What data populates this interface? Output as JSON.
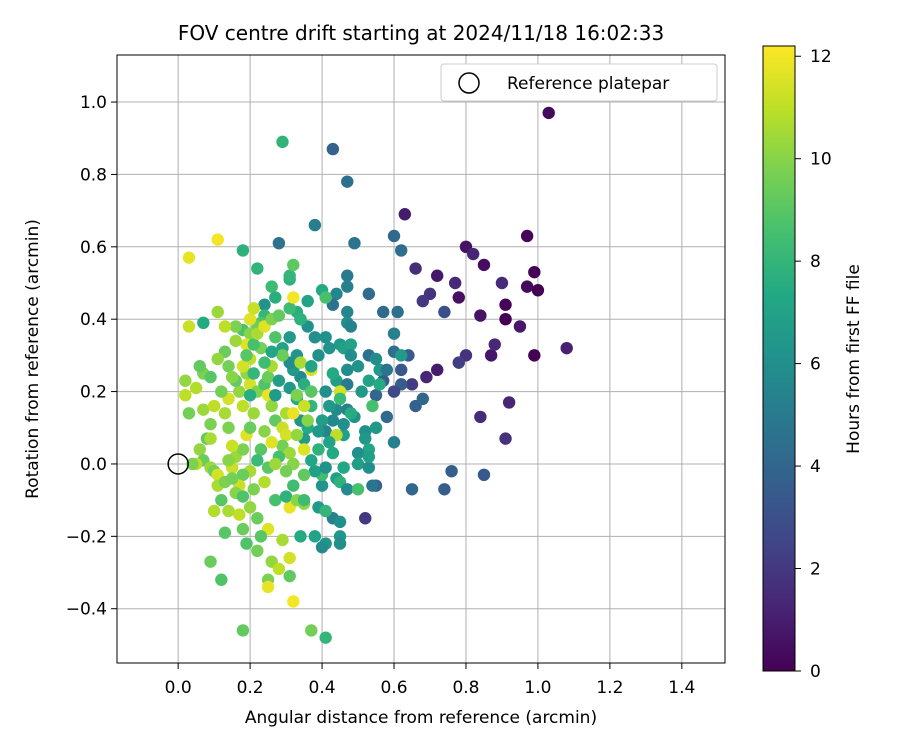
{
  "chart_data": {
    "type": "scatter",
    "title": "FOV centre drift starting at 2024/11/18 16:02:33",
    "xlabel": "Angular distance from reference (arcmin)",
    "ylabel": "Rotation from reference (arcmin)",
    "xlim": [
      -0.17,
      1.52
    ],
    "ylim": [
      -0.55,
      1.13
    ],
    "xticks": [
      "0.0",
      "0.2",
      "0.4",
      "0.6",
      "0.8",
      "1.0",
      "1.2",
      "1.4"
    ],
    "xtick_values": [
      0.0,
      0.2,
      0.4,
      0.6,
      0.8,
      1.0,
      1.2,
      1.4
    ],
    "yticks": [
      "−0.4",
      "−0.2",
      "0.0",
      "0.2",
      "0.4",
      "0.6",
      "0.8",
      "1.0"
    ],
    "ytick_values": [
      -0.4,
      -0.2,
      0.0,
      0.2,
      0.4,
      0.6,
      0.8,
      1.0
    ],
    "grid": true,
    "legend": {
      "position": "top-right",
      "entries": [
        "Reference platepar"
      ]
    },
    "reference_point": {
      "x": 0.0,
      "y": 0.0,
      "label": "Reference platepar"
    },
    "colorbar": {
      "label": "Hours from first FF file",
      "range": [
        0,
        12.2
      ],
      "ticks": [
        "0",
        "2",
        "4",
        "6",
        "8",
        "10",
        "12"
      ],
      "tick_values": [
        0,
        2,
        4,
        6,
        8,
        10,
        12
      ],
      "colormap": "viridis"
    },
    "points": [
      [
        1.03,
        0.97,
        0.3
      ],
      [
        0.97,
        0.63,
        0.2
      ],
      [
        0.99,
        0.53,
        0.1
      ],
      [
        1.0,
        0.48,
        0.0
      ],
      [
        0.97,
        0.49,
        0.3
      ],
      [
        0.91,
        0.44,
        0.1
      ],
      [
        0.91,
        0.4,
        0.0
      ],
      [
        0.95,
        0.38,
        0.8
      ],
      [
        0.99,
        0.3,
        0.0
      ],
      [
        1.08,
        0.32,
        1.1
      ],
      [
        0.85,
        0.55,
        0.4
      ],
      [
        0.8,
        0.6,
        0.6
      ],
      [
        0.82,
        0.58,
        1.3
      ],
      [
        0.9,
        0.5,
        1.5
      ],
      [
        0.84,
        0.41,
        0.6
      ],
      [
        0.78,
        0.46,
        0.5
      ],
      [
        0.77,
        0.5,
        1.4
      ],
      [
        0.72,
        0.52,
        0.8
      ],
      [
        0.63,
        0.69,
        0.9
      ],
      [
        0.66,
        0.54,
        1.6
      ],
      [
        0.7,
        0.47,
        1.8
      ],
      [
        0.68,
        0.45,
        2.0
      ],
      [
        0.74,
        0.42,
        3.0
      ],
      [
        0.87,
        0.3,
        0.7
      ],
      [
        0.88,
        0.33,
        1.4
      ],
      [
        0.8,
        0.3,
        1.8
      ],
      [
        0.78,
        0.28,
        2.2
      ],
      [
        0.72,
        0.26,
        0.9
      ],
      [
        0.69,
        0.24,
        1.3
      ],
      [
        0.65,
        0.22,
        2.1
      ],
      [
        0.92,
        0.17,
        1.3
      ],
      [
        0.91,
        0.07,
        1.8
      ],
      [
        0.84,
        0.13,
        1.5
      ],
      [
        0.85,
        -0.03,
        3.4
      ],
      [
        0.76,
        -0.02,
        3.6
      ],
      [
        0.74,
        -0.07,
        3.6
      ],
      [
        0.65,
        -0.07,
        4.1
      ],
      [
        0.52,
        -0.15,
        2.0
      ],
      [
        0.55,
        -0.06,
        3.8
      ],
      [
        0.66,
        0.16,
        3.8
      ],
      [
        0.68,
        0.18,
        4.0
      ],
      [
        0.62,
        0.22,
        3.6
      ],
      [
        0.6,
        0.2,
        2.6
      ],
      [
        0.55,
        0.19,
        4.0
      ],
      [
        0.57,
        0.23,
        3.5
      ],
      [
        0.58,
        0.13,
        4.2
      ],
      [
        0.6,
        0.06,
        5.3
      ],
      [
        0.62,
        0.26,
        3.3
      ],
      [
        0.64,
        0.3,
        3.5
      ],
      [
        0.6,
        0.31,
        4.4
      ],
      [
        0.6,
        0.36,
        5.2
      ],
      [
        0.57,
        0.42,
        4.2
      ],
      [
        0.53,
        0.47,
        4.3
      ],
      [
        0.61,
        0.42,
        4.5
      ],
      [
        0.62,
        0.59,
        4.4
      ],
      [
        0.6,
        0.63,
        4.1
      ],
      [
        0.49,
        0.61,
        4.7
      ],
      [
        0.43,
        0.87,
        3.8
      ],
      [
        0.47,
        0.78,
        4.5
      ],
      [
        0.38,
        0.66,
        5.1
      ],
      [
        0.28,
        0.61,
        4.6
      ],
      [
        0.47,
        0.52,
        5.0
      ],
      [
        0.47,
        0.49,
        5.3
      ],
      [
        0.44,
        0.47,
        5.5
      ],
      [
        0.43,
        0.44,
        4.6
      ],
      [
        0.47,
        0.42,
        5.6
      ],
      [
        0.47,
        0.39,
        5.9
      ],
      [
        0.48,
        0.38,
        5.4
      ],
      [
        0.38,
        0.35,
        6.0
      ],
      [
        0.41,
        0.35,
        6.1
      ],
      [
        0.42,
        0.32,
        6.3
      ],
      [
        0.45,
        0.33,
        6.5
      ],
      [
        0.46,
        0.32,
        6.8
      ],
      [
        0.48,
        0.33,
        7.0
      ],
      [
        0.48,
        0.3,
        5.9
      ],
      [
        0.53,
        0.3,
        4.5
      ],
      [
        0.56,
        0.26,
        6.6
      ],
      [
        0.47,
        0.26,
        5.9
      ],
      [
        0.44,
        0.23,
        6.8
      ],
      [
        0.47,
        0.22,
        5.0
      ],
      [
        0.51,
        0.2,
        6.5
      ],
      [
        0.53,
        0.23,
        7.0
      ],
      [
        0.41,
        0.2,
        6.0
      ],
      [
        0.44,
        0.15,
        5.8
      ],
      [
        0.47,
        0.15,
        5.2
      ],
      [
        0.49,
        0.13,
        6.2
      ],
      [
        0.43,
        0.12,
        5.7
      ],
      [
        0.4,
        0.12,
        6.8
      ],
      [
        0.36,
        0.1,
        7.4
      ],
      [
        0.41,
        0.09,
        5.5
      ],
      [
        0.46,
        0.08,
        6.9
      ],
      [
        0.52,
        0.09,
        6.1
      ],
      [
        0.55,
        0.1,
        6.5
      ],
      [
        0.52,
        0.07,
        6.4
      ],
      [
        0.53,
        0.04,
        7.2
      ],
      [
        0.5,
        0.03,
        6.0
      ],
      [
        0.5,
        0.0,
        6.8
      ],
      [
        0.46,
        -0.01,
        7.3
      ],
      [
        0.44,
        -0.04,
        6.9
      ],
      [
        0.45,
        -0.05,
        7.8
      ],
      [
        0.53,
        -0.01,
        6.0
      ],
      [
        0.53,
        0.02,
        6.9
      ],
      [
        0.47,
        -0.07,
        5.8
      ],
      [
        0.5,
        -0.07,
        8.6
      ],
      [
        0.54,
        -0.06,
        4.8
      ],
      [
        0.43,
        -0.15,
        5.2
      ],
      [
        0.45,
        -0.16,
        6.0
      ],
      [
        0.45,
        -0.2,
        6.4
      ],
      [
        0.45,
        -0.22,
        6.0
      ],
      [
        0.41,
        -0.22,
        6.4
      ],
      [
        0.4,
        -0.23,
        5.8
      ],
      [
        0.38,
        -0.2,
        7.0
      ],
      [
        0.34,
        -0.2,
        7.4
      ],
      [
        0.39,
        -0.12,
        6.6
      ],
      [
        0.41,
        -0.13,
        8.0
      ],
      [
        0.4,
        -0.06,
        6.3
      ],
      [
        0.4,
        -0.03,
        8.4
      ],
      [
        0.38,
        -0.02,
        6.9
      ],
      [
        0.37,
        0.01,
        7.2
      ],
      [
        0.39,
        0.04,
        7.8
      ],
      [
        0.35,
        0.07,
        6.7
      ],
      [
        0.34,
        0.12,
        6.2
      ],
      [
        0.37,
        0.16,
        8.0
      ],
      [
        0.33,
        0.18,
        7.4
      ],
      [
        0.31,
        0.21,
        6.5
      ],
      [
        0.34,
        0.24,
        5.8
      ],
      [
        0.35,
        0.22,
        7.6
      ],
      [
        0.32,
        0.26,
        6.5
      ],
      [
        0.31,
        0.28,
        5.9
      ],
      [
        0.33,
        0.3,
        6.3
      ],
      [
        0.29,
        0.32,
        7.0
      ],
      [
        0.31,
        0.35,
        6.6
      ],
      [
        0.36,
        0.38,
        6.1
      ],
      [
        0.34,
        0.4,
        6.6
      ],
      [
        0.33,
        0.42,
        7.6
      ],
      [
        0.31,
        0.43,
        8.4
      ],
      [
        0.27,
        0.46,
        7.6
      ],
      [
        0.26,
        0.49,
        8.3
      ],
      [
        0.31,
        0.51,
        7.7
      ],
      [
        0.31,
        0.52,
        8.0
      ],
      [
        0.32,
        0.55,
        9.1
      ],
      [
        0.22,
        0.54,
        7.9
      ],
      [
        0.18,
        0.59,
        7.7
      ],
      [
        0.29,
        0.89,
        7.9
      ],
      [
        0.4,
        0.48,
        7.4
      ],
      [
        0.41,
        0.46,
        8.6
      ],
      [
        0.36,
        0.45,
        7.0
      ],
      [
        0.34,
        0.4,
        7.8
      ],
      [
        0.24,
        0.44,
        6.2
      ],
      [
        0.24,
        0.41,
        8.0
      ],
      [
        0.23,
        0.39,
        8.8
      ],
      [
        0.22,
        0.38,
        9.4
      ],
      [
        0.18,
        0.37,
        8.7
      ],
      [
        0.16,
        0.38,
        9.8
      ],
      [
        0.13,
        0.38,
        11.0
      ],
      [
        0.11,
        0.42,
        10.4
      ],
      [
        0.07,
        0.39,
        7.4
      ],
      [
        0.03,
        0.38,
        11.2
      ],
      [
        0.03,
        0.57,
        11.8
      ],
      [
        0.11,
        0.62,
        12.0
      ],
      [
        0.2,
        0.4,
        11.6
      ],
      [
        0.21,
        0.43,
        11.2
      ],
      [
        0.2,
        0.36,
        10.0
      ],
      [
        0.19,
        0.33,
        11.6
      ],
      [
        0.16,
        0.34,
        10.4
      ],
      [
        0.13,
        0.31,
        9.4
      ],
      [
        0.11,
        0.29,
        10.2
      ],
      [
        0.14,
        0.27,
        9.6
      ],
      [
        0.07,
        0.25,
        9.8
      ],
      [
        0.09,
        0.24,
        9.0
      ],
      [
        0.06,
        0.27,
        9.2
      ],
      [
        0.05,
        0.21,
        10.8
      ],
      [
        0.02,
        0.23,
        10.2
      ],
      [
        0.02,
        0.19,
        11.0
      ],
      [
        0.03,
        0.14,
        9.6
      ],
      [
        0.07,
        0.15,
        10.4
      ],
      [
        0.09,
        0.11,
        9.8
      ],
      [
        0.08,
        0.07,
        9.2
      ],
      [
        0.06,
        0.04,
        10.2
      ],
      [
        0.07,
        0.01,
        9.4
      ],
      [
        0.05,
        0.0,
        11.0
      ],
      [
        0.09,
        -0.01,
        10.4
      ],
      [
        0.1,
        -0.02,
        9.6
      ],
      [
        0.11,
        -0.03,
        11.4
      ],
      [
        0.11,
        -0.06,
        10.6
      ],
      [
        0.13,
        -0.05,
        9.8
      ],
      [
        0.15,
        -0.01,
        11.2
      ],
      [
        0.16,
        0.02,
        10.4
      ],
      [
        0.18,
        0.04,
        9.8
      ],
      [
        0.19,
        0.08,
        11.6
      ],
      [
        0.2,
        0.1,
        9.4
      ],
      [
        0.21,
        0.14,
        10.4
      ],
      [
        0.18,
        0.16,
        11.0
      ],
      [
        0.17,
        0.2,
        10.2
      ],
      [
        0.2,
        0.22,
        11.4
      ],
      [
        0.22,
        0.2,
        9.8
      ],
      [
        0.24,
        0.22,
        8.8
      ],
      [
        0.25,
        0.24,
        9.4
      ],
      [
        0.26,
        0.27,
        10.6
      ],
      [
        0.25,
        0.19,
        11.8
      ],
      [
        0.26,
        0.16,
        10.2
      ],
      [
        0.27,
        0.12,
        9.2
      ],
      [
        0.29,
        0.1,
        11.2
      ],
      [
        0.3,
        0.14,
        10.6
      ],
      [
        0.3,
        0.08,
        11.4
      ],
      [
        0.29,
        0.05,
        9.6
      ],
      [
        0.31,
        0.03,
        10.4
      ],
      [
        0.32,
        0.0,
        10.0
      ],
      [
        0.28,
        0.02,
        8.6
      ],
      [
        0.26,
        0.06,
        11.6
      ],
      [
        0.24,
        0.09,
        10.0
      ],
      [
        0.23,
        0.04,
        9.0
      ],
      [
        0.22,
        0.01,
        8.2
      ],
      [
        0.2,
        -0.02,
        10.6
      ],
      [
        0.18,
        -0.03,
        9.4
      ],
      [
        0.17,
        -0.06,
        11.2
      ],
      [
        0.16,
        -0.08,
        10.0
      ],
      [
        0.18,
        -0.09,
        8.8
      ],
      [
        0.21,
        -0.07,
        9.8
      ],
      [
        0.24,
        -0.05,
        10.8
      ],
      [
        0.25,
        -0.01,
        9.0
      ],
      [
        0.27,
        0.0,
        10.4
      ],
      [
        0.3,
        -0.02,
        9.6
      ],
      [
        0.32,
        -0.06,
        8.4
      ],
      [
        0.35,
        -0.03,
        9.2
      ],
      [
        0.35,
        0.04,
        11.6
      ],
      [
        0.33,
        0.08,
        10.2
      ],
      [
        0.32,
        0.14,
        11.8
      ],
      [
        0.33,
        0.19,
        9.8
      ],
      [
        0.35,
        0.16,
        11.2
      ],
      [
        0.36,
        0.12,
        10.0
      ],
      [
        0.37,
        0.2,
        9.0
      ],
      [
        0.37,
        0.26,
        11.4
      ],
      [
        0.34,
        0.28,
        10.6
      ],
      [
        0.29,
        0.3,
        9.4
      ],
      [
        0.27,
        0.35,
        8.8
      ],
      [
        0.23,
        0.32,
        9.6
      ],
      [
        0.2,
        0.29,
        11.0
      ],
      [
        0.19,
        0.25,
        10.2
      ],
      [
        0.16,
        0.23,
        9.2
      ],
      [
        0.14,
        0.18,
        11.4
      ],
      [
        0.13,
        0.14,
        10.6
      ],
      [
        0.14,
        0.1,
        9.8
      ],
      [
        0.15,
        0.05,
        11.2
      ],
      [
        0.14,
        0.01,
        10.0
      ],
      [
        0.15,
        -0.04,
        9.6
      ],
      [
        0.12,
        -0.1,
        9.0
      ],
      [
        0.14,
        -0.13,
        10.6
      ],
      [
        0.17,
        -0.14,
        11.0
      ],
      [
        0.2,
        -0.12,
        10.2
      ],
      [
        0.22,
        -0.15,
        9.4
      ],
      [
        0.25,
        -0.18,
        11.6
      ],
      [
        0.23,
        -0.2,
        9.0
      ],
      [
        0.19,
        -0.22,
        8.8
      ],
      [
        0.22,
        -0.24,
        9.6
      ],
      [
        0.26,
        -0.27,
        10.2
      ],
      [
        0.28,
        -0.29,
        11.0
      ],
      [
        0.25,
        -0.32,
        9.8
      ],
      [
        0.25,
        -0.34,
        11.8
      ],
      [
        0.31,
        -0.31,
        9.2
      ],
      [
        0.31,
        -0.26,
        11.4
      ],
      [
        0.32,
        -0.38,
        12.0
      ],
      [
        0.29,
        -0.21,
        10.6
      ],
      [
        0.31,
        -0.12,
        11.8
      ],
      [
        0.35,
        -0.11,
        10.2
      ],
      [
        0.37,
        -0.46,
        9.6
      ],
      [
        0.41,
        -0.48,
        8.0
      ],
      [
        0.18,
        -0.46,
        9.2
      ],
      [
        0.12,
        -0.32,
        8.8
      ],
      [
        0.09,
        -0.27,
        9.4
      ],
      [
        0.13,
        -0.19,
        9.0
      ],
      [
        0.1,
        -0.13,
        10.8
      ],
      [
        0.18,
        -0.18,
        9.4
      ],
      [
        0.27,
        -0.1,
        8.6
      ],
      [
        0.3,
        -0.09,
        7.8
      ],
      [
        0.33,
        -0.1,
        10.0
      ],
      [
        0.35,
        -0.1,
        8.4
      ],
      [
        0.04,
        -0.0,
        9.8
      ],
      [
        0.09,
        0.07,
        10.6
      ],
      [
        0.1,
        0.16,
        11.0
      ],
      [
        0.12,
        0.2,
        9.6
      ],
      [
        0.15,
        0.24,
        10.0
      ],
      [
        0.18,
        0.27,
        11.4
      ],
      [
        0.19,
        0.3,
        9.0
      ],
      [
        0.21,
        0.33,
        8.6
      ],
      [
        0.22,
        0.36,
        10.6
      ],
      [
        0.24,
        0.38,
        11.6
      ],
      [
        0.26,
        0.4,
        9.8
      ],
      [
        0.28,
        0.41,
        9.2
      ],
      [
        0.32,
        0.46,
        12.0
      ],
      [
        0.45,
        0.2,
        11.4
      ],
      [
        0.44,
        0.08,
        11.0
      ],
      [
        0.45,
        0.18,
        8.2
      ],
      [
        0.54,
        0.16,
        8.6
      ],
      [
        0.56,
        0.22,
        7.4
      ],
      [
        0.55,
        0.29,
        5.9
      ],
      [
        0.58,
        0.26,
        4.7
      ],
      [
        0.62,
        0.3,
        6.6
      ],
      [
        0.5,
        0.27,
        6.2
      ],
      [
        0.48,
        0.14,
        7.5
      ],
      [
        0.46,
        0.11,
        6.0
      ],
      [
        0.42,
        0.06,
        7.0
      ],
      [
        0.39,
        0.09,
        6.5
      ],
      [
        0.43,
        0.03,
        7.4
      ],
      [
        0.41,
        -0.01,
        6.2
      ],
      [
        0.24,
        0.28,
        8.4
      ],
      [
        0.26,
        0.31,
        7.2
      ],
      [
        0.28,
        0.23,
        6.8
      ],
      [
        0.37,
        0.27,
        7.1
      ],
      [
        0.39,
        0.3,
        6.0
      ],
      [
        0.43,
        0.25,
        7.4
      ],
      [
        0.2,
        0.19,
        7.6
      ],
      [
        0.21,
        0.25,
        8.0
      ],
      [
        0.27,
        0.19,
        6.6
      ],
      [
        0.42,
        0.16,
        6.6
      ]
    ]
  }
}
